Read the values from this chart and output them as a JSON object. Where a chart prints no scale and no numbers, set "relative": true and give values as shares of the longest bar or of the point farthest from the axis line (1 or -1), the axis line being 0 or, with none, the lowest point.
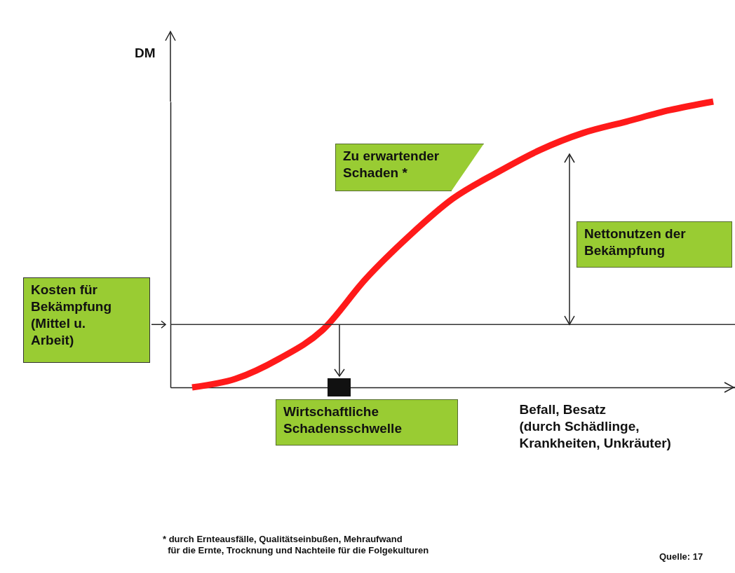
{
  "chart_data": {
    "type": "line",
    "relative": true,
    "ylabel": "DM",
    "xlabel": "Befall, Besatz\n(durch Schädlinge,\nKrankheiten, Unkräuter)",
    "categories": [
      null,
      null,
      null,
      null,
      null,
      null,
      null,
      null,
      null,
      null,
      null,
      null,
      null
    ],
    "values": [
      0,
      0.03,
      0.1,
      0.2,
      0.38,
      0.53,
      0.66,
      0.75,
      0.83,
      0.89,
      0.93,
      0.97,
      1
    ],
    "color": "#ff1a1a",
    "ref_lines": [
      {
        "axis": "y",
        "value": 0.22,
        "label": "Kosten für\nBekämpfung\n(Mittel u.\nArbeit)",
        "color": "#333333"
      }
    ],
    "annotations": [
      "Zu erwartender\nSchaden *",
      "Nettonutzen der\nBekämpfung",
      "Wirtschaftliche\nSchadensschwelle",
      "* durch Ernteausfälle, Qualitätseinbußen, Mehraufwand\n  für die Ernte, Trocknung und Nachteile für die Folgekulturen",
      "Quelle: 17"
    ]
  }
}
